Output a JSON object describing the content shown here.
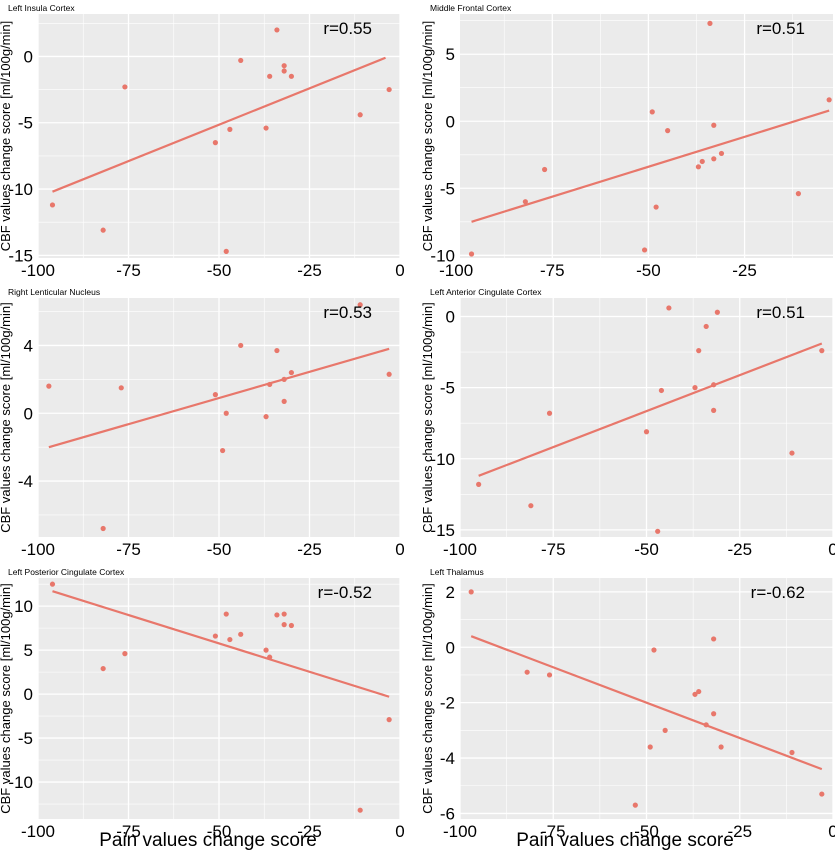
{
  "xlabel": "Pain values change score",
  "ylabel": "CBF values change score [ml/100g/min]",
  "colors": {
    "panel_bg": "#ebebeb",
    "grid": "#ffffff",
    "point": "#e8776b",
    "line": "#e8776b"
  },
  "chart_data": [
    {
      "type": "scatter",
      "title": "Left Insula Cortex",
      "annotation": "r=0.55",
      "xlim": [
        -100,
        0
      ],
      "ylim": [
        -15.2,
        3.2
      ],
      "xticks": [
        -100,
        -75,
        -50,
        -25,
        0
      ],
      "yticks": [
        -15,
        -10,
        -5,
        0
      ],
      "points": [
        [
          -96,
          -11.2
        ],
        [
          -82,
          -13.1
        ],
        [
          -76,
          -2.3
        ],
        [
          -51,
          -6.5
        ],
        [
          -48,
          -14.7
        ],
        [
          -47,
          -5.5
        ],
        [
          -44,
          -0.3
        ],
        [
          -37,
          -5.4
        ],
        [
          -36,
          -1.5
        ],
        [
          -34,
          2.0
        ],
        [
          -32,
          -0.7
        ],
        [
          -32,
          -1.1
        ],
        [
          -30,
          -1.5
        ],
        [
          -11,
          -4.4
        ],
        [
          -3,
          -2.5
        ]
      ],
      "fit": [
        [
          -96,
          -10.2
        ],
        [
          -4,
          -0.1
        ]
      ]
    },
    {
      "type": "scatter",
      "title": "Middle Frontal Cortex",
      "annotation": "r=0.51",
      "xlim": [
        -99,
        -2
      ],
      "ylim": [
        -10.2,
        8.0
      ],
      "xticks": [
        -100,
        -75,
        -50,
        -25,
        0
      ],
      "yticks": [
        -10,
        -5,
        0,
        5
      ],
      "points": [
        [
          -96,
          -9.9
        ],
        [
          -82,
          -6.0
        ],
        [
          -77,
          -3.6
        ],
        [
          -51,
          -9.6
        ],
        [
          -49,
          0.7
        ],
        [
          -48,
          -6.4
        ],
        [
          -45,
          -0.7
        ],
        [
          -37,
          -3.4
        ],
        [
          -36,
          -3.0
        ],
        [
          -34,
          7.3
        ],
        [
          -33,
          -2.8
        ],
        [
          -33,
          -0.3
        ],
        [
          -31,
          -2.4
        ],
        [
          -11,
          -5.4
        ],
        [
          -3,
          1.6
        ]
      ],
      "fit": [
        [
          -96,
          -7.5
        ],
        [
          -3,
          0.8
        ]
      ]
    },
    {
      "type": "scatter",
      "title": "Right Lenticular Nucleus",
      "annotation": "r=0.53",
      "xlim": [
        -100,
        0
      ],
      "ylim": [
        -7.3,
        6.8
      ],
      "xticks": [
        -100,
        -75,
        -50,
        -25,
        0
      ],
      "yticks": [
        -4,
        0,
        4
      ],
      "points": [
        [
          -97,
          1.6
        ],
        [
          -82,
          -6.8
        ],
        [
          -77,
          1.5
        ],
        [
          -51,
          1.1
        ],
        [
          -49,
          -2.2
        ],
        [
          -48,
          0.0
        ],
        [
          -44,
          4.0
        ],
        [
          -37,
          -0.2
        ],
        [
          -36,
          1.7
        ],
        [
          -34,
          3.7
        ],
        [
          -32,
          2.0
        ],
        [
          -32,
          0.7
        ],
        [
          -30,
          2.4
        ],
        [
          -11,
          6.4
        ],
        [
          -3,
          2.3
        ]
      ],
      "fit": [
        [
          -97,
          -2.0
        ],
        [
          -3,
          3.8
        ]
      ]
    },
    {
      "type": "scatter",
      "title": "Left Anterior Cingulate Cortex",
      "annotation": "r=0.51",
      "xlim": [
        -100,
        0
      ],
      "ylim": [
        -15.5,
        1.3
      ],
      "xticks": [
        -100,
        -75,
        -50,
        -25,
        0
      ],
      "yticks": [
        -15,
        -10,
        -5,
        0
      ],
      "points": [
        [
          -95,
          -11.8
        ],
        [
          -81,
          -13.3
        ],
        [
          -76,
          -6.8
        ],
        [
          -50,
          -8.1
        ],
        [
          -47,
          -15.1
        ],
        [
          -46,
          -5.2
        ],
        [
          -44,
          0.6
        ],
        [
          -37,
          -5.0
        ],
        [
          -36,
          -2.4
        ],
        [
          -34,
          -0.7
        ],
        [
          -32,
          -4.8
        ],
        [
          -32,
          -6.6
        ],
        [
          -31,
          0.3
        ],
        [
          -11,
          -9.6
        ],
        [
          -3,
          -2.4
        ]
      ],
      "fit": [
        [
          -95,
          -11.2
        ],
        [
          -3,
          -1.9
        ]
      ]
    },
    {
      "type": "scatter",
      "title": "Left Posterior Cingulate Cortex",
      "annotation": "r=-0.52",
      "xlim": [
        -100,
        0
      ],
      "ylim": [
        -14.2,
        13.2
      ],
      "xticks": [
        -100,
        -75,
        -50,
        -25,
        0
      ],
      "yticks": [
        -10,
        -5,
        0,
        5,
        10
      ],
      "points": [
        [
          -96,
          12.5
        ],
        [
          -82,
          2.9
        ],
        [
          -76,
          4.6
        ],
        [
          -51,
          6.6
        ],
        [
          -48,
          9.1
        ],
        [
          -47,
          6.2
        ],
        [
          -44,
          6.8
        ],
        [
          -37,
          5.0
        ],
        [
          -36,
          4.2
        ],
        [
          -34,
          9.0
        ],
        [
          -32,
          7.9
        ],
        [
          -32,
          9.1
        ],
        [
          -30,
          7.8
        ],
        [
          -11,
          -13.2
        ],
        [
          -3,
          -2.9
        ]
      ],
      "fit": [
        [
          -96,
          11.7
        ],
        [
          -3,
          -0.3
        ]
      ]
    },
    {
      "type": "scatter",
      "title": "Left Thalamus",
      "annotation": "r=-0.62",
      "xlim": [
        -100,
        0
      ],
      "ylim": [
        -6.2,
        2.5
      ],
      "xticks": [
        -100,
        -75,
        -50,
        -25,
        0
      ],
      "yticks": [
        -6,
        -4,
        -2,
        0,
        2
      ],
      "points": [
        [
          -97,
          2.0
        ],
        [
          -82,
          -0.9
        ],
        [
          -76,
          -1.0
        ],
        [
          -53,
          -5.7
        ],
        [
          -49,
          -3.6
        ],
        [
          -48,
          -0.1
        ],
        [
          -45,
          -3.0
        ],
        [
          -37,
          -1.7
        ],
        [
          -36,
          -1.6
        ],
        [
          -34,
          -2.8
        ],
        [
          -32,
          0.3
        ],
        [
          -32,
          -2.4
        ],
        [
          -30,
          -3.6
        ],
        [
          -11,
          -3.8
        ],
        [
          -3,
          -5.3
        ]
      ],
      "fit": [
        [
          -97,
          0.4
        ],
        [
          -3,
          -4.4
        ]
      ]
    }
  ]
}
